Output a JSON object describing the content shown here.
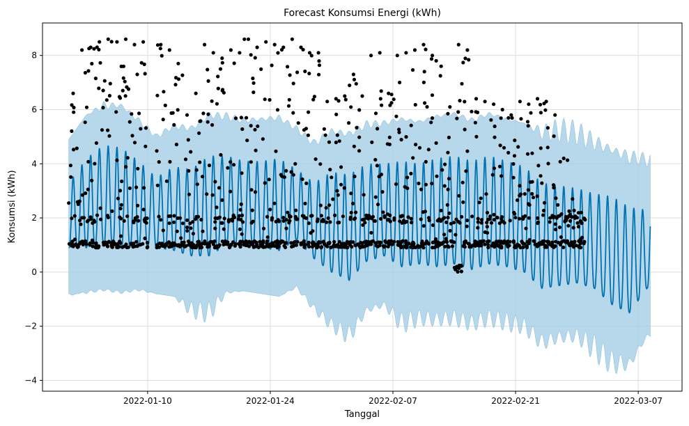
{
  "chart_data": {
    "type": "scatter",
    "title": "Forecast Konsumsi Energi (kWh)",
    "xlabel": "Tanggal",
    "ylabel": "Konsumsi (kWh)",
    "xlim": [
      "2021-12-29",
      "2022-03-12"
    ],
    "ylim": [
      -4.4,
      9.2
    ],
    "xticks": [
      "2022-01-10",
      "2022-01-24",
      "2022-02-07",
      "2022-02-21",
      "2022-03-07"
    ],
    "yticks": [
      -4,
      -2,
      0,
      2,
      4,
      6,
      8
    ],
    "grid": true,
    "colors": {
      "observed": "#000000",
      "forecast": "#0072B2",
      "interval": "#9fcbe3"
    },
    "series": [
      {
        "kind": "observed",
        "x": [
          "2022-01-01",
          "2022-01-02",
          "2022-01-03",
          "2022-01-04",
          "2022-01-05",
          "2022-01-06",
          "2022-01-07",
          "2022-01-08",
          "2022-01-09",
          "2022-01-11",
          "2022-01-12",
          "2022-01-13",
          "2022-01-14",
          "2022-01-15",
          "2022-01-16",
          "2022-01-17",
          "2022-01-18",
          "2022-01-19",
          "2022-01-20",
          "2022-01-21",
          "2022-01-22",
          "2022-01-23",
          "2022-01-24",
          "2022-01-25",
          "2022-01-26",
          "2022-01-27",
          "2022-01-28",
          "2022-01-29",
          "2022-01-30",
          "2022-01-31",
          "2022-02-01",
          "2022-02-02",
          "2022-02-03",
          "2022-02-04",
          "2022-02-05",
          "2022-02-06",
          "2022-02-07",
          "2022-02-08",
          "2022-02-09",
          "2022-02-10",
          "2022-02-11",
          "2022-02-12",
          "2022-02-13",
          "2022-02-14",
          "2022-02-15",
          "2022-02-16",
          "2022-02-17",
          "2022-02-18",
          "2022-02-19",
          "2022-02-20",
          "2022-02-21",
          "2022-02-22",
          "2022-02-23",
          "2022-02-24",
          "2022-02-25",
          "2022-02-26",
          "2022-02-27",
          "2022-02-28"
        ],
        "high": [
          6.6,
          8.2,
          8.3,
          8.5,
          8.6,
          8.5,
          8.6,
          8.4,
          8.5,
          8.4,
          8.2,
          7.7,
          5.8,
          6.6,
          8.4,
          8.1,
          7.9,
          8.2,
          8.1,
          8.6,
          8.3,
          8.5,
          8.4,
          8.3,
          8.6,
          8.3,
          8.1,
          8.1,
          6.3,
          6.4,
          6.5,
          7.3,
          6.5,
          8.0,
          8.1,
          6.6,
          8.0,
          8.1,
          8.2,
          8.4,
          8.0,
          7.6,
          6.1,
          8.4,
          8.2,
          6.4,
          6.3,
          6.2,
          6.0,
          5.8,
          6.3,
          6.2,
          6.4,
          6.3,
          5.8,
          4.2,
          2.7,
          2.2
        ],
        "low": [
          0.9,
          0.9,
          0.9,
          0.9,
          0.9,
          0.9,
          0.9,
          0.9,
          0.9,
          0.9,
          0.9,
          0.9,
          0.9,
          0.9,
          0.9,
          0.9,
          0.9,
          0.9,
          0.9,
          0.9,
          0.9,
          0.9,
          0.9,
          0.9,
          0.9,
          0.9,
          0.9,
          0.9,
          0.9,
          0.9,
          0.9,
          0.9,
          0.9,
          0.9,
          0.9,
          0.9,
          0.9,
          0.9,
          0.9,
          0.9,
          0.9,
          0.9,
          0.9,
          0.0,
          0.9,
          0.9,
          0.9,
          0.9,
          0.9,
          0.9,
          0.9,
          0.9,
          0.9,
          0.9,
          0.9,
          0.9,
          0.9,
          0.9
        ]
      },
      {
        "kind": "forecast",
        "x": [
          "2022-01-01",
          "2022-01-03",
          "2022-01-05",
          "2022-01-07",
          "2022-01-09",
          "2022-01-11",
          "2022-01-13",
          "2022-01-15",
          "2022-01-17",
          "2022-01-19",
          "2022-01-21",
          "2022-01-23",
          "2022-01-25",
          "2022-01-27",
          "2022-01-29",
          "2022-01-31",
          "2022-02-02",
          "2022-02-04",
          "2022-02-06",
          "2022-02-08",
          "2022-02-10",
          "2022-02-12",
          "2022-02-14",
          "2022-02-16",
          "2022-02-18",
          "2022-02-20",
          "2022-02-22",
          "2022-02-24",
          "2022-02-26",
          "2022-02-28",
          "2022-03-02",
          "2022-03-04",
          "2022-03-06",
          "2022-03-08"
        ],
        "low": [
          0.9,
          0.9,
          1.0,
          0.9,
          1.0,
          0.9,
          0.8,
          0.6,
          0.6,
          1.0,
          1.0,
          0.9,
          0.8,
          1.2,
          0.5,
          0.0,
          -0.3,
          0.4,
          0.6,
          0.2,
          0.3,
          0.2,
          0.3,
          0.1,
          0.3,
          0.2,
          0.0,
          -0.6,
          -0.5,
          -0.4,
          -0.6,
          -1.2,
          -1.5,
          -0.6
        ],
        "high": [
          3.3,
          4.2,
          4.7,
          4.6,
          4.1,
          3.5,
          3.9,
          3.8,
          4.3,
          4.3,
          4.1,
          4.1,
          4.2,
          3.8,
          3.3,
          3.7,
          3.6,
          4.0,
          4.0,
          4.1,
          4.0,
          4.2,
          4.3,
          4.1,
          4.3,
          4.1,
          3.9,
          3.3,
          3.2,
          3.1,
          2.9,
          2.8,
          2.4,
          2.3
        ]
      },
      {
        "kind": "interval",
        "x": [
          "2022-01-01",
          "2022-01-03",
          "2022-01-05",
          "2022-01-07",
          "2022-01-09",
          "2022-01-11",
          "2022-01-13",
          "2022-01-15",
          "2022-01-17",
          "2022-01-19",
          "2022-01-21",
          "2022-01-23",
          "2022-01-25",
          "2022-01-27",
          "2022-01-29",
          "2022-01-31",
          "2022-02-02",
          "2022-02-04",
          "2022-02-06",
          "2022-02-08",
          "2022-02-10",
          "2022-02-12",
          "2022-02-14",
          "2022-02-16",
          "2022-02-18",
          "2022-02-20",
          "2022-02-22",
          "2022-02-24",
          "2022-02-26",
          "2022-02-28",
          "2022-03-02",
          "2022-03-04",
          "2022-03-06",
          "2022-03-08"
        ],
        "lower": [
          -0.9,
          -0.7,
          -0.6,
          -0.7,
          -0.6,
          -0.8,
          -0.9,
          -1.7,
          -1.9,
          -0.8,
          -0.7,
          -0.8,
          -0.9,
          -0.6,
          -1.5,
          -2.2,
          -2.7,
          -1.5,
          -1.3,
          -2.3,
          -2.0,
          -2.0,
          -2.0,
          -2.2,
          -2.0,
          -2.2,
          -2.3,
          -2.9,
          -2.6,
          -2.6,
          -3.3,
          -3.8,
          -3.6,
          -2.4
        ],
        "upper": [
          4.9,
          5.8,
          6.0,
          6.1,
          5.5,
          4.9,
          5.3,
          5.2,
          5.7,
          5.6,
          5.5,
          5.6,
          5.6,
          5.2,
          4.6,
          5.1,
          5.0,
          5.3,
          5.4,
          5.6,
          5.5,
          5.7,
          5.8,
          5.5,
          5.8,
          5.6,
          5.5,
          5.4,
          5.7,
          5.6,
          5.1,
          4.6,
          4.5,
          4.4
        ]
      }
    ]
  }
}
